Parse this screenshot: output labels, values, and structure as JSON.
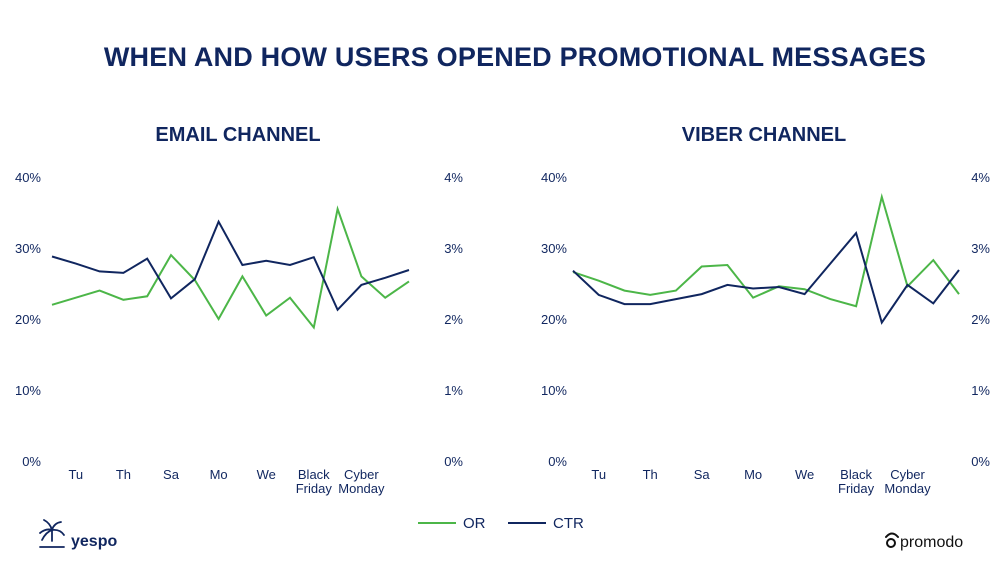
{
  "title": "WHEN AND HOW USERS OPENED PROMOTIONAL MESSAGES",
  "colors": {
    "or": "#4cb648",
    "ctr": "#10265f",
    "text": "#10265f"
  },
  "legend": {
    "or": "OR",
    "ctr": "CTR"
  },
  "logos": {
    "left": "yespo",
    "right": "promodo"
  },
  "chart_data": [
    {
      "type": "line",
      "title": "EMAIL CHANNEL",
      "x_tick_labels": [
        "Tu",
        "Th",
        "Sa",
        "Mo",
        "We",
        "Black Friday",
        "Cyber Monday"
      ],
      "x_tick_positions": [
        1,
        3,
        5,
        7,
        9,
        11,
        13
      ],
      "y_left_labels": [
        "0%",
        "10%",
        "20%",
        "30%",
        "40%"
      ],
      "y_right_labels": [
        "0%",
        "1%",
        "2%",
        "3%",
        "4%"
      ],
      "y_left_range": [
        0,
        40
      ],
      "y_right_range": [
        0,
        4
      ],
      "series": [
        {
          "name": "OR",
          "axis": "left",
          "values": [
            22,
            23,
            24,
            22.7,
            23.2,
            29,
            25.5,
            20,
            26,
            20.5,
            23,
            18.8,
            35.5,
            26,
            23,
            25.3
          ]
        },
        {
          "name": "CTR",
          "axis": "right",
          "values": [
            2.88,
            2.78,
            2.67,
            2.65,
            2.85,
            2.29,
            2.56,
            3.37,
            2.76,
            2.82,
            2.76,
            2.87,
            2.13,
            2.48,
            2.58,
            2.69
          ]
        }
      ]
    },
    {
      "type": "line",
      "title": "VIBER CHANNEL",
      "x_tick_labels": [
        "Tu",
        "Th",
        "Sa",
        "Mo",
        "We",
        "Black Friday",
        "Cyber Monday"
      ],
      "x_tick_positions": [
        1,
        3,
        5,
        7,
        9,
        11,
        13
      ],
      "y_left_labels": [
        "0%",
        "10%",
        "20%",
        "30%",
        "40%"
      ],
      "y_right_labels": [
        "0%",
        "1%",
        "2%",
        "3%",
        "4%"
      ],
      "y_left_range": [
        0,
        40
      ],
      "y_right_range": [
        0,
        4
      ],
      "series": [
        {
          "name": "OR",
          "axis": "left",
          "values": [
            26.6,
            25.4,
            24,
            23.4,
            24,
            27.4,
            27.6,
            23,
            24.6,
            24.2,
            22.8,
            21.8,
            37.2,
            24.6,
            28.3,
            23.5
          ]
        },
        {
          "name": "CTR",
          "axis": "right",
          "values": [
            2.68,
            2.34,
            2.21,
            2.21,
            2.28,
            2.35,
            2.48,
            2.43,
            2.45,
            2.35,
            2.78,
            3.21,
            1.95,
            2.48,
            2.22,
            2.69
          ]
        }
      ]
    }
  ]
}
